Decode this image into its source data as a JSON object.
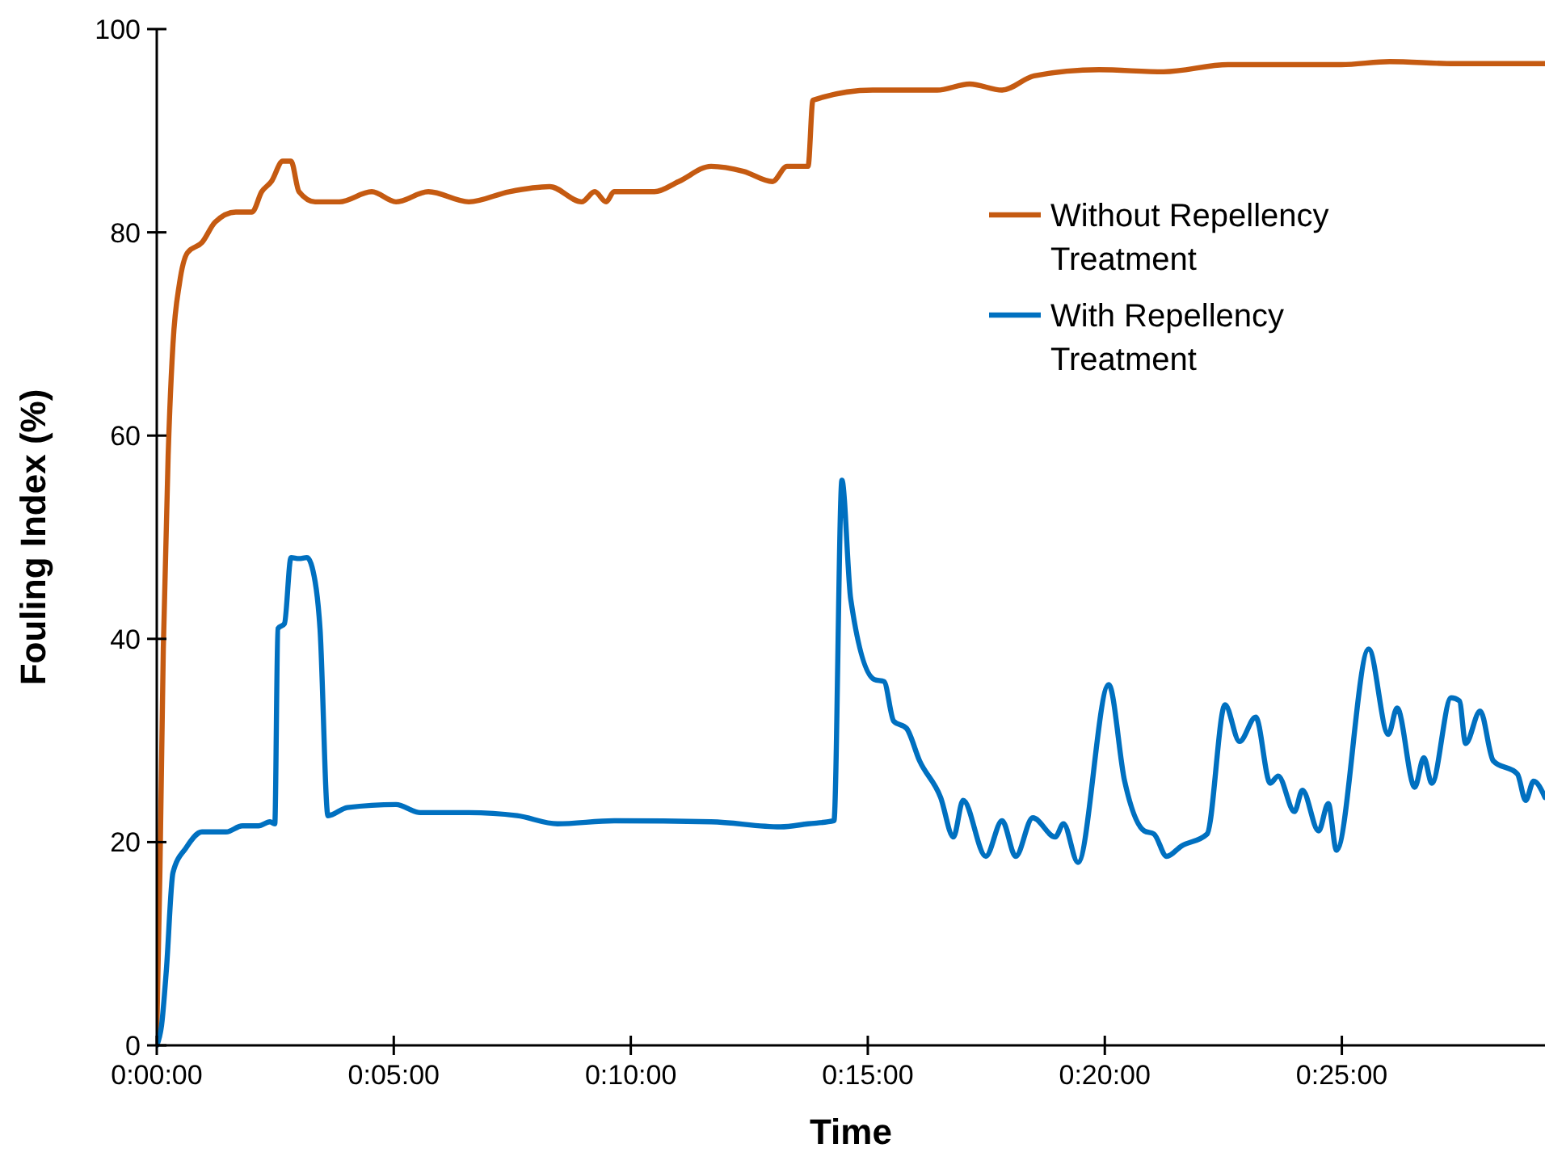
{
  "chart_data": {
    "type": "line",
    "xlabel": "Time",
    "ylabel": "Fouling Index (%)",
    "xlim": [
      0,
      0.4881
    ],
    "ylim": [
      0,
      100
    ],
    "xticks": [
      {
        "value": 0,
        "label": "0:00:00"
      },
      {
        "value": 0.08333,
        "label": "0:05:00"
      },
      {
        "value": 0.16667,
        "label": "0:10:00"
      },
      {
        "value": 0.25,
        "label": "0:15:00"
      },
      {
        "value": 0.33333,
        "label": "0:20:00"
      },
      {
        "value": 0.41667,
        "label": "0:25:00"
      }
    ],
    "yticks": [
      0,
      20,
      40,
      60,
      80,
      100
    ],
    "grid": false,
    "legend": "top right",
    "marker": "none",
    "line_style": "solid",
    "series": [
      {
        "name": "Without Repellency Treatment",
        "color": "#c55a11",
        "x": [
          0,
          0.0011,
          0.0023,
          0.004,
          0.0057,
          0.008,
          0.0108,
          0.0159,
          0.0205,
          0.0278,
          0.0335,
          0.0369,
          0.0403,
          0.0443,
          0.0472,
          0.05,
          0.0557,
          0.0642,
          0.0756,
          0.0841,
          0.0955,
          0.1097,
          0.1239,
          0.1381,
          0.1494,
          0.154,
          0.158,
          0.1608,
          0.175,
          0.1835,
          0.1949,
          0.2063,
          0.2165,
          0.2216,
          0.229,
          0.2307,
          0.2517,
          0.2744,
          0.2858,
          0.2972,
          0.3085,
          0.3313,
          0.354,
          0.3767,
          0.4165,
          0.4335,
          0.4563,
          0.4881
        ],
        "values": [
          1,
          17,
          39,
          58,
          69,
          75,
          78,
          79,
          81,
          82,
          82,
          84,
          85,
          87,
          87,
          84,
          83,
          83,
          84,
          83,
          84,
          83,
          84,
          84.5,
          83,
          84,
          83,
          84,
          84,
          85,
          86.5,
          86,
          85,
          86.5,
          86.5,
          93,
          94,
          94,
          94.6,
          94,
          95.4,
          96,
          95.8,
          96.5,
          96.5,
          96.8,
          96.6,
          96.6
        ]
      },
      {
        "name": "With Repellency Treatment",
        "color": "#0070c0",
        "x": [
          0,
          0.0017,
          0.0034,
          0.0057,
          0.0102,
          0.0159,
          0.0244,
          0.0301,
          0.0358,
          0.0398,
          0.0415,
          0.0426,
          0.0449,
          0.0472,
          0.05,
          0.0528,
          0.0557,
          0.0574,
          0.0602,
          0.067,
          0.0841,
          0.0926,
          0.1097,
          0.1267,
          0.1409,
          0.1608,
          0.1949,
          0.2193,
          0.229,
          0.2381,
          0.2409,
          0.244,
          0.2523,
          0.2557,
          0.2591,
          0.2636,
          0.2682,
          0.2756,
          0.2801,
          0.2835,
          0.2915,
          0.2972,
          0.302,
          0.308,
          0.3159,
          0.3188,
          0.3239,
          0.3347,
          0.3403,
          0.3472,
          0.3506,
          0.3551,
          0.3602,
          0.3693,
          0.3756,
          0.3807,
          0.3864,
          0.3915,
          0.3943,
          0.4,
          0.4028,
          0.4085,
          0.4119,
          0.4148,
          0.4261,
          0.433,
          0.4361,
          0.4423,
          0.4455,
          0.4483,
          0.4551,
          0.458,
          0.4602,
          0.4653,
          0.4699,
          0.4784,
          0.4813,
          0.4841,
          0.4881
        ],
        "values": [
          0,
          2,
          7.5,
          17,
          19.4,
          21,
          21,
          21.6,
          21.6,
          22,
          21.8,
          41,
          41.5,
          48,
          47.9,
          48,
          45.6,
          41,
          22.6,
          23.4,
          23.7,
          22.9,
          22.9,
          22.6,
          21.8,
          22.1,
          22,
          21.5,
          21.8,
          22.1,
          55.6,
          43.9,
          36,
          35.8,
          31.9,
          31.2,
          28,
          24.4,
          20.5,
          24.1,
          18.6,
          22.1,
          18.6,
          22.4,
          20.5,
          21.8,
          18,
          35.5,
          26,
          21.1,
          20.8,
          18.6,
          19.6,
          20.8,
          33.5,
          29.9,
          32.3,
          25.8,
          26.5,
          23,
          25.1,
          21.1,
          23.8,
          19.2,
          39,
          30.6,
          33.2,
          25.4,
          28.3,
          25.8,
          34.2,
          33.9,
          29.7,
          32.9,
          28,
          26.7,
          24.1,
          26,
          24.4
        ]
      }
    ]
  }
}
